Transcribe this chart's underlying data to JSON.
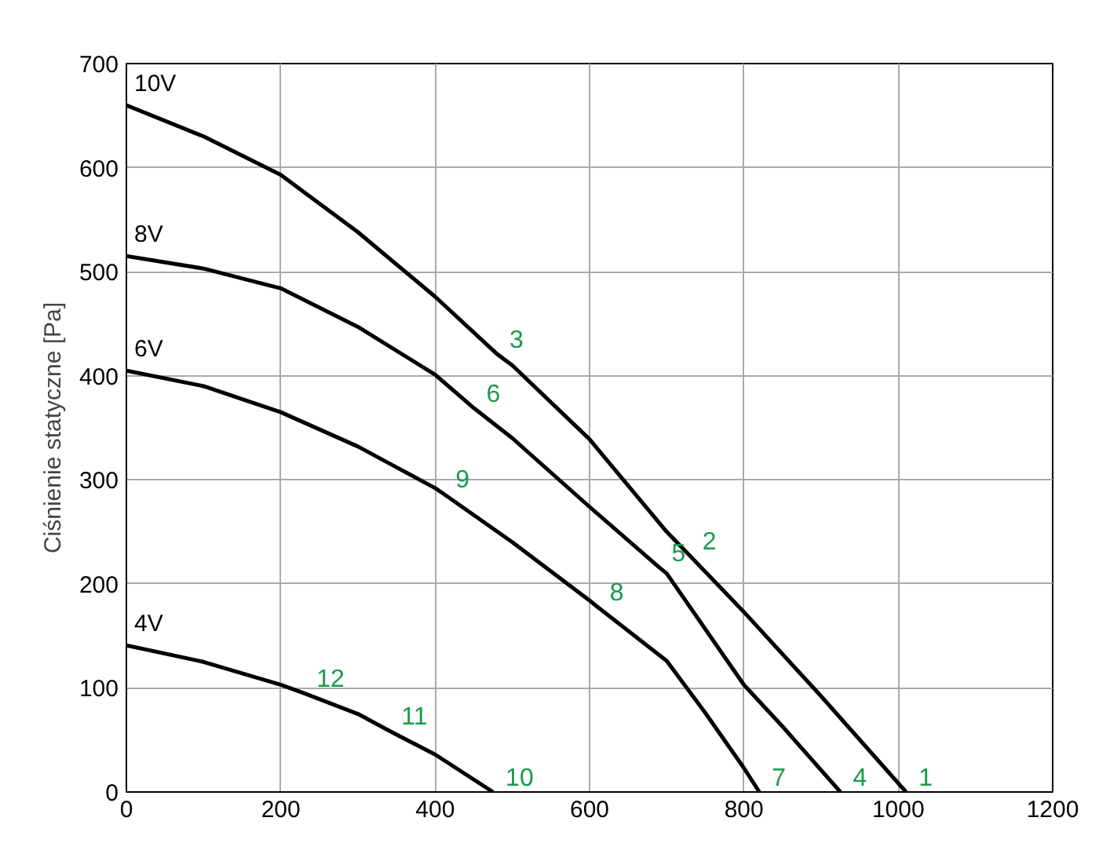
{
  "chart_data": {
    "type": "line",
    "ylabel": "Ciśnienie statyczne [Pa]",
    "xlim": [
      0,
      1200
    ],
    "ylim": [
      0,
      700
    ],
    "xticks": [
      0,
      200,
      400,
      600,
      800,
      1000,
      1200
    ],
    "yticks": [
      0,
      100,
      200,
      300,
      400,
      500,
      600,
      700
    ],
    "grid": true,
    "marker": "none",
    "line_style": "solid",
    "series": [
      {
        "name": "10V",
        "color": "#000000",
        "x": [
          0,
          100,
          200,
          300,
          400,
          480,
          500,
          600,
          700,
          730,
          800,
          900,
          1010
        ],
        "values": [
          660,
          630,
          593,
          538,
          476,
          421,
          410,
          339,
          250,
          227,
          173,
          92,
          0
        ]
      },
      {
        "name": "8V",
        "color": "#000000",
        "x": [
          0,
          100,
          200,
          300,
          400,
          450,
          500,
          600,
          690,
          700,
          800,
          850,
          925
        ],
        "values": [
          515,
          503,
          484,
          447,
          401,
          369,
          340,
          274,
          216,
          210,
          103,
          63,
          0
        ]
      },
      {
        "name": "6V",
        "color": "#000000",
        "x": [
          0,
          100,
          200,
          300,
          400,
          410,
          500,
          600,
          610,
          700,
          750,
          800,
          820
        ],
        "values": [
          405,
          390,
          365,
          332,
          292,
          287,
          240,
          184,
          178,
          126,
          76,
          23,
          0
        ]
      },
      {
        "name": "4V",
        "color": "#000000",
        "x": [
          0,
          100,
          200,
          230,
          300,
          340,
          400,
          475
        ],
        "values": [
          141,
          125,
          103,
          95,
          75,
          59,
          36,
          0
        ]
      }
    ],
    "annotations": [
      {
        "text": "1",
        "x": 1010,
        "y": 0
      },
      {
        "text": "2",
        "x": 730,
        "y": 227
      },
      {
        "text": "3",
        "x": 480,
        "y": 421
      },
      {
        "text": "4",
        "x": 925,
        "y": 0
      },
      {
        "text": "5",
        "x": 690,
        "y": 216
      },
      {
        "text": "6",
        "x": 450,
        "y": 369
      },
      {
        "text": "7",
        "x": 820,
        "y": 0
      },
      {
        "text": "8",
        "x": 610,
        "y": 178
      },
      {
        "text": "9",
        "x": 410,
        "y": 287
      },
      {
        "text": "10",
        "x": 475,
        "y": 0
      },
      {
        "text": "11",
        "x": 340,
        "y": 59
      },
      {
        "text": "12",
        "x": 230,
        "y": 95
      }
    ]
  }
}
